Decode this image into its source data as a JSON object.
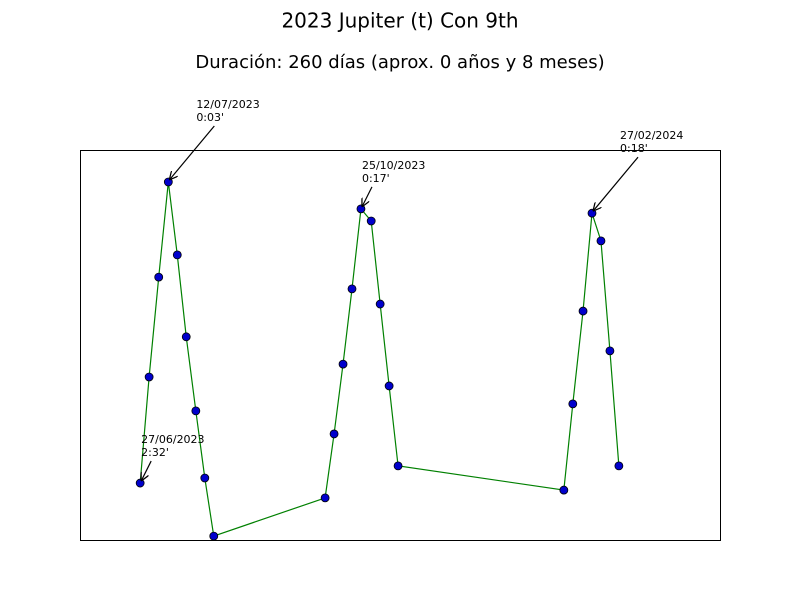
{
  "chart_data": {
    "type": "line",
    "title": "2023 Jupiter (t) Con 9th",
    "subtitle": "Duración: 260 días (aprox. 0 años y 8 meses)",
    "xlim": [
      0,
      100
    ],
    "ylim": [
      0,
      100
    ],
    "series": [
      {
        "color": "#008000",
        "marker_color": "#0000cc",
        "x": [
          9.4,
          10.8,
          12.3,
          13.8,
          15.2,
          16.6,
          18.1,
          19.5,
          20.9,
          38.3,
          39.7,
          41.1,
          42.5,
          43.9,
          45.5,
          46.9,
          48.3,
          49.7,
          75.6,
          77.0,
          78.6,
          80.0,
          81.4,
          82.8,
          84.2
        ],
        "values": [
          14.6,
          41.8,
          67.4,
          91.8,
          73.1,
          52.1,
          33.1,
          15.9,
          1.0,
          10.8,
          27.2,
          45.1,
          64.4,
          84.9,
          81.8,
          60.5,
          39.5,
          19.0,
          12.8,
          34.9,
          58.7,
          83.8,
          76.7,
          48.5,
          19.0
        ]
      }
    ],
    "annotations": [
      {
        "date": "27/06/2023",
        "separation": "2:32'",
        "x": 9.4,
        "y": 14.6
      },
      {
        "date": "12/07/2023",
        "separation": "0:03'",
        "x": 13.8,
        "y": 91.8
      },
      {
        "date": "25/10/2023",
        "separation": "0:17'",
        "x": 43.9,
        "y": 84.9
      },
      {
        "date": "27/02/2024",
        "separation": "0:18'",
        "x": 80.0,
        "y": 83.8
      }
    ]
  }
}
